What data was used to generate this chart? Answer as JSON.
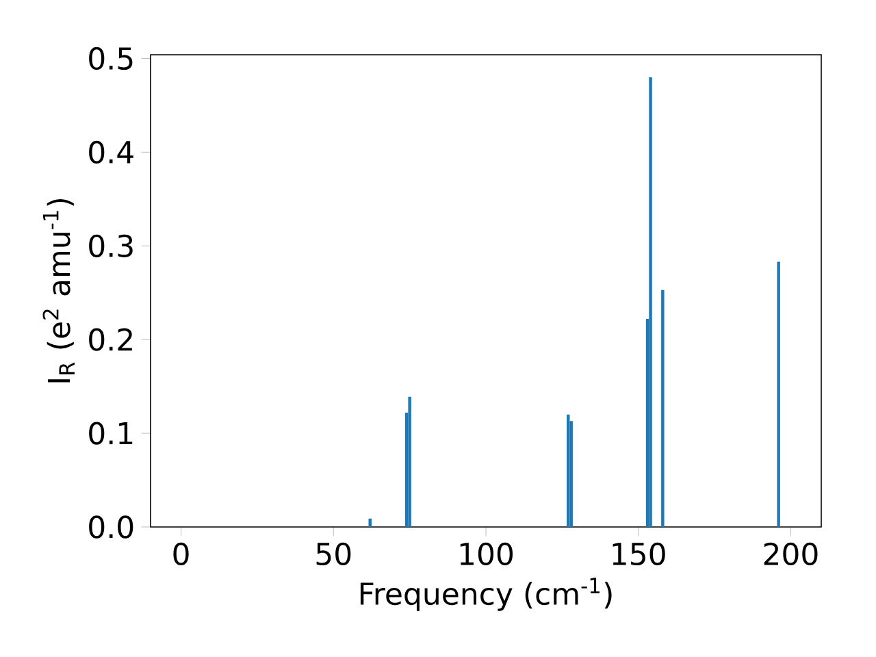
{
  "chart_data": {
    "type": "bar",
    "xlabel": "Frequency (cm$^{-1}$)",
    "ylabel": "I$_{R}$ (e$^{2}$ amu$^{-1}$)",
    "x": [
      62,
      74,
      75,
      127,
      128,
      153,
      154,
      158,
      196
    ],
    "values": [
      0.009,
      0.122,
      0.139,
      0.12,
      0.113,
      0.222,
      0.48,
      0.253,
      0.283
    ],
    "color": "#1f77b4",
    "xlim": [
      -10,
      210
    ],
    "ylim": [
      0,
      0.504
    ],
    "xticks": [
      0,
      50,
      100,
      150,
      200
    ],
    "yticks": [
      {
        "value": 0,
        "label": "0.0"
      },
      {
        "value": 0.1,
        "label": "0.1"
      },
      {
        "value": 0.2,
        "label": "0.2"
      },
      {
        "value": 0.3,
        "label": "0.3"
      },
      {
        "value": 0.4,
        "label": "0.4"
      },
      {
        "value": 0.5,
        "label": "0.5"
      }
    ],
    "grid": false
  }
}
